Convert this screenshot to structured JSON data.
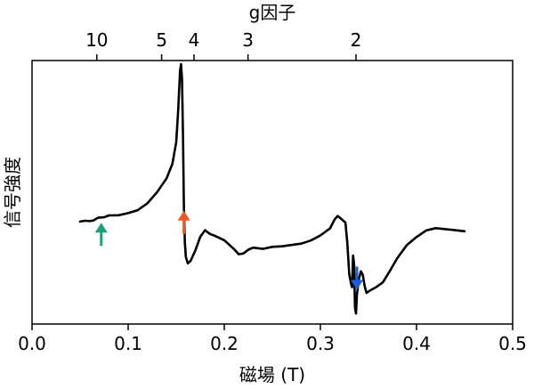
{
  "chart_data": {
    "type": "line",
    "xlabel": "磁場 (T)",
    "ylabel": "信号強度",
    "top_axis_label": "g因子",
    "xlim": [
      0.0,
      0.5
    ],
    "ylim": [
      0.0,
      1.0
    ],
    "x_ticks": [
      {
        "value": 0.0,
        "label": "0.0"
      },
      {
        "value": 0.1,
        "label": "0.1"
      },
      {
        "value": 0.2,
        "label": "0.2"
      },
      {
        "value": 0.3,
        "label": "0.3"
      },
      {
        "value": 0.4,
        "label": "0.4"
      },
      {
        "value": 0.5,
        "label": "0.5"
      }
    ],
    "top_ticks": [
      {
        "field": 0.0674,
        "label": "10"
      },
      {
        "field": 0.1348,
        "label": "5"
      },
      {
        "field": 0.1685,
        "label": "4"
      },
      {
        "field": 0.2247,
        "label": "3"
      },
      {
        "field": 0.337,
        "label": "2"
      }
    ],
    "grid": false,
    "series": [
      {
        "color": "#000000",
        "points": [
          [
            0.05,
            0.389
          ],
          [
            0.055,
            0.392
          ],
          [
            0.06,
            0.391
          ],
          [
            0.064,
            0.393
          ],
          [
            0.066,
            0.398
          ],
          [
            0.068,
            0.402
          ],
          [
            0.07,
            0.404
          ],
          [
            0.075,
            0.405
          ],
          [
            0.08,
            0.412
          ],
          [
            0.09,
            0.413
          ],
          [
            0.1,
            0.421
          ],
          [
            0.11,
            0.432
          ],
          [
            0.12,
            0.458
          ],
          [
            0.13,
            0.5
          ],
          [
            0.14,
            0.553
          ],
          [
            0.146,
            0.608
          ],
          [
            0.15,
            0.69
          ],
          [
            0.152,
            0.81
          ],
          [
            0.154,
            0.96
          ],
          [
            0.155,
            0.986
          ],
          [
            0.156,
            0.93
          ],
          [
            0.157,
            0.72
          ],
          [
            0.158,
            0.45
          ],
          [
            0.159,
            0.31
          ],
          [
            0.16,
            0.255
          ],
          [
            0.162,
            0.23
          ],
          [
            0.165,
            0.24
          ],
          [
            0.17,
            0.28
          ],
          [
            0.175,
            0.331
          ],
          [
            0.18,
            0.356
          ],
          [
            0.185,
            0.342
          ],
          [
            0.19,
            0.335
          ],
          [
            0.2,
            0.318
          ],
          [
            0.21,
            0.285
          ],
          [
            0.215,
            0.265
          ],
          [
            0.22,
            0.268
          ],
          [
            0.225,
            0.282
          ],
          [
            0.23,
            0.29
          ],
          [
            0.24,
            0.285
          ],
          [
            0.25,
            0.293
          ],
          [
            0.26,
            0.295
          ],
          [
            0.27,
            0.3
          ],
          [
            0.28,
            0.305
          ],
          [
            0.29,
            0.317
          ],
          [
            0.3,
            0.336
          ],
          [
            0.31,
            0.363
          ],
          [
            0.315,
            0.398
          ],
          [
            0.318,
            0.41
          ],
          [
            0.322,
            0.398
          ],
          [
            0.326,
            0.385
          ],
          [
            0.328,
            0.31
          ],
          [
            0.33,
            0.19
          ],
          [
            0.332,
            0.15
          ],
          [
            0.333,
            0.14
          ],
          [
            0.334,
            0.26
          ],
          [
            0.335,
            0.23
          ],
          [
            0.336,
            0.06
          ],
          [
            0.337,
            0.04
          ],
          [
            0.338,
            0.11
          ],
          [
            0.34,
            0.17
          ],
          [
            0.342,
            0.2
          ],
          [
            0.344,
            0.188
          ],
          [
            0.346,
            0.145
          ],
          [
            0.348,
            0.118
          ],
          [
            0.352,
            0.128
          ],
          [
            0.358,
            0.14
          ],
          [
            0.365,
            0.158
          ],
          [
            0.372,
            0.2
          ],
          [
            0.38,
            0.25
          ],
          [
            0.39,
            0.3
          ],
          [
            0.4,
            0.33
          ],
          [
            0.41,
            0.355
          ],
          [
            0.42,
            0.364
          ],
          [
            0.43,
            0.36
          ],
          [
            0.44,
            0.356
          ],
          [
            0.45,
            0.352
          ]
        ]
      }
    ],
    "annotations": [
      {
        "type": "arrow-up",
        "x": 0.072,
        "color": "#1aa178"
      },
      {
        "type": "arrow-up",
        "x": 0.158,
        "color": "#f0561f"
      },
      {
        "type": "arrow-down",
        "x": 0.338,
        "color": "#1760d8"
      }
    ]
  }
}
